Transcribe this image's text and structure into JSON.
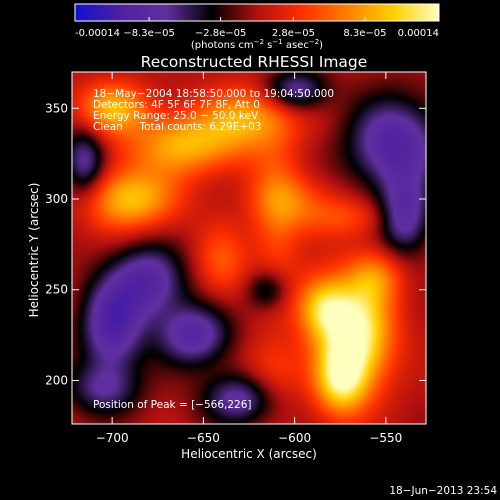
{
  "chart_data": {
    "type": "heatmap",
    "title": "Reconstructed RHESSI Image",
    "xlabel": "Heliocentric X (arcsec)",
    "ylabel": "Heliocentric Y (arcsec)",
    "xlim": [
      -722,
      -528
    ],
    "ylim": [
      176,
      370
    ],
    "x_ticks": [
      -700,
      -650,
      -600,
      -550
    ],
    "y_ticks": [
      200,
      250,
      300,
      350
    ],
    "colorbar": {
      "vmin": -0.00014,
      "vmax": 0.00014,
      "tick_values": [
        -0.00014,
        -8.3e-05,
        -2.8e-05,
        2.8e-05,
        8.3e-05,
        0.00014
      ],
      "tick_labels": [
        "-0.00014",
        "−8.3e−05",
        "−2.8e−05",
        "2.8e−05",
        "8.3e−05",
        "0.00014"
      ],
      "units": {
        "prefix": "(photons cm",
        "sup1": "−2",
        "mid": " s",
        "sup2": "−1",
        "mid2": " asec",
        "sup3": "−2",
        "suffix": ")"
      }
    },
    "annotations": {
      "line1": "18−May−2004 18:58:50.000 to 19:04:50.000",
      "line2": "Detectors: 4F 5F 6F 7F 8F, Att 0",
      "line3": "Energy Range: 25.0 − 50.0 keV",
      "line4": "Clean     Total counts: 6.29E+03",
      "peak": "Position of Peak = [−566,226]"
    },
    "peak_position": [
      -566,
      226
    ],
    "timestamp": "18−Jun−2013 23:54",
    "colormap": [
      "#1010d0",
      "#5020a0",
      "#6030a0",
      "#000000",
      "#b01010",
      "#ff3000",
      "#ff8000",
      "#ffd000",
      "#ffffc0"
    ],
    "intensity_regions": [
      {
        "x": -566,
        "y": 226,
        "sx": 14,
        "sy": 22,
        "level": 0.00014
      },
      {
        "x": -585,
        "y": 240,
        "sx": 10,
        "sy": 12,
        "level": 9e-05
      },
      {
        "x": -575,
        "y": 200,
        "sx": 10,
        "sy": 14,
        "level": 0.0001
      },
      {
        "x": -690,
        "y": 300,
        "sx": 18,
        "sy": 12,
        "level": 0.0001
      },
      {
        "x": -660,
        "y": 330,
        "sx": 22,
        "sy": 12,
        "level": 9e-05
      },
      {
        "x": -700,
        "y": 350,
        "sx": 14,
        "sy": 10,
        "level": 9e-05
      },
      {
        "x": -625,
        "y": 345,
        "sx": 18,
        "sy": 12,
        "level": 8e-05
      },
      {
        "x": -640,
        "y": 265,
        "sx": 10,
        "sy": 14,
        "level": 5e-05
      },
      {
        "x": -610,
        "y": 290,
        "sx": 10,
        "sy": 30,
        "level": 5e-05
      },
      {
        "x": -600,
        "y": 300,
        "sx": 16,
        "sy": 10,
        "level": 4e-05
      },
      {
        "x": -570,
        "y": 290,
        "sx": 20,
        "sy": 8,
        "level": 4e-05
      },
      {
        "x": -555,
        "y": 258,
        "sx": 10,
        "sy": 10,
        "level": 5e-05
      },
      {
        "x": -612,
        "y": 205,
        "sx": 12,
        "sy": 14,
        "level": 4e-05
      },
      {
        "x": -680,
        "y": 255,
        "sx": 14,
        "sy": 14,
        "level": -9e-05
      },
      {
        "x": -700,
        "y": 230,
        "sx": 12,
        "sy": 18,
        "level": -0.0001
      },
      {
        "x": -655,
        "y": 225,
        "sx": 14,
        "sy": 12,
        "level": -9e-05
      },
      {
        "x": -630,
        "y": 190,
        "sx": 14,
        "sy": 10,
        "level": -8e-05
      },
      {
        "x": -545,
        "y": 330,
        "sx": 18,
        "sy": 18,
        "level": -0.0001
      },
      {
        "x": -540,
        "y": 290,
        "sx": 10,
        "sy": 14,
        "level": -9e-05
      },
      {
        "x": -600,
        "y": 360,
        "sx": 12,
        "sy": 8,
        "level": -8e-05
      },
      {
        "x": -715,
        "y": 320,
        "sx": 8,
        "sy": 14,
        "level": -8e-05
      },
      {
        "x": -705,
        "y": 195,
        "sx": 14,
        "sy": 10,
        "level": -6e-05
      },
      {
        "x": -615,
        "y": 250,
        "sx": 8,
        "sy": 8,
        "level": -6e-05
      }
    ]
  }
}
